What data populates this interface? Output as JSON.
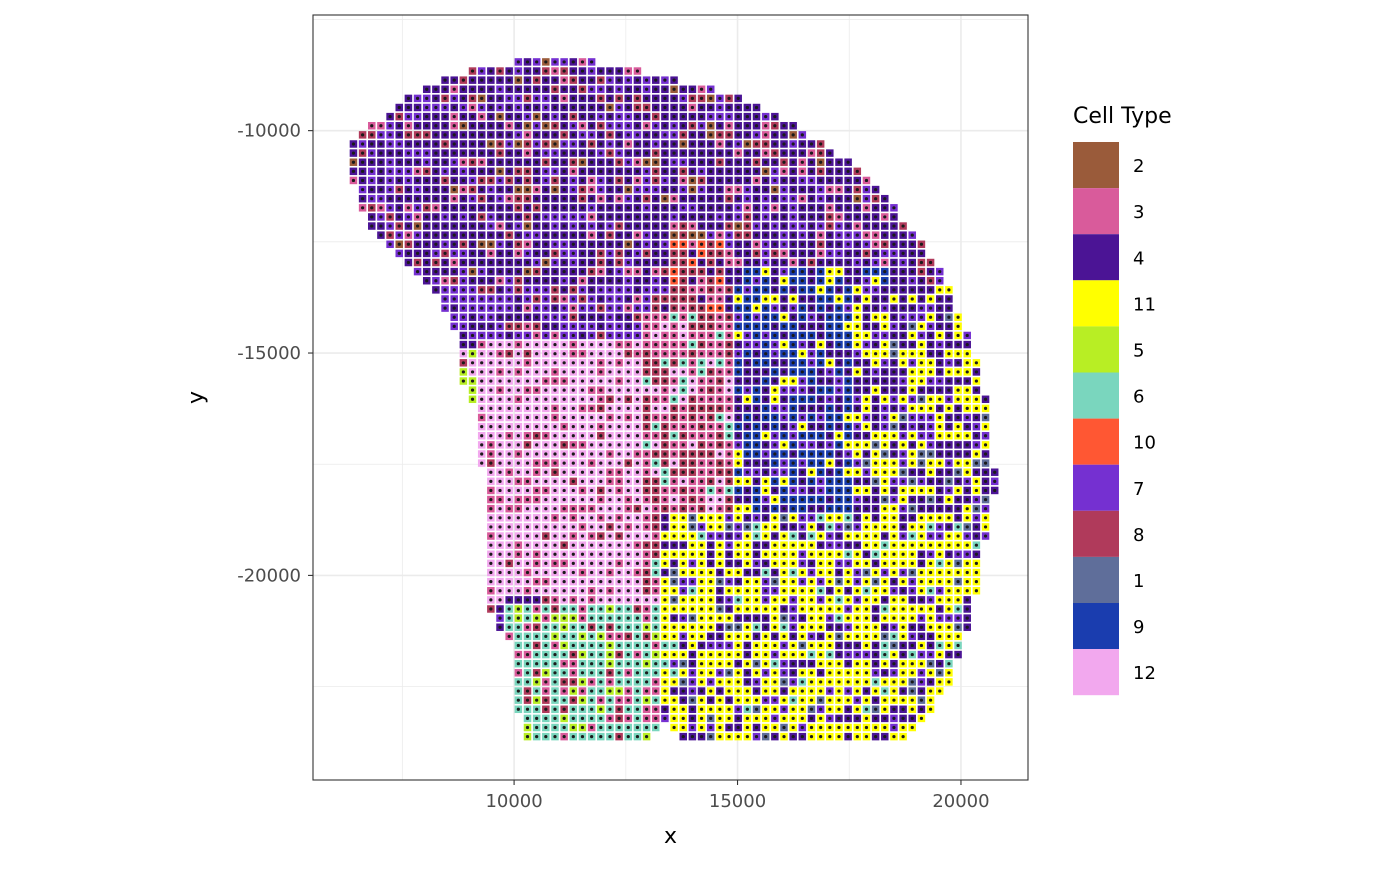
{
  "chart_data": {
    "type": "scatter",
    "title": "",
    "xlabel": "x",
    "ylabel": "y",
    "xlim": [
      5500,
      21500
    ],
    "ylim": [
      -24600,
      -7400
    ],
    "x_ticks": [
      10000,
      15000,
      20000
    ],
    "x_tick_labels": [
      "10000",
      "15000",
      "20000"
    ],
    "y_ticks": [
      -10000,
      -15000,
      -20000
    ],
    "y_tick_labels": [
      "-10000",
      "-15000",
      "-20000"
    ],
    "grid": true,
    "theme": "bw",
    "marker": "square tile with dot",
    "legend": {
      "title": "Cell Type",
      "position": "right",
      "entries": [
        {
          "label": "2",
          "color": "#9A5B3A"
        },
        {
          "label": "3",
          "color": "#D95B9B"
        },
        {
          "label": "4",
          "color": "#4B1495"
        },
        {
          "label": "11",
          "color": "#FFFF00"
        },
        {
          "label": "5",
          "color": "#B8EE24"
        },
        {
          "label": "6",
          "color": "#7AD6BE"
        },
        {
          "label": "10",
          "color": "#FF5733"
        },
        {
          "label": "7",
          "color": "#7530D1"
        },
        {
          "label": "8",
          "color": "#B03A5B"
        },
        {
          "label": "1",
          "color": "#5F6E9A"
        },
        {
          "label": "9",
          "color": "#1A3DAF"
        },
        {
          "label": "12",
          "color": "#F2A8EE"
        }
      ]
    },
    "spot_grid": {
      "x_start": 6200,
      "x_step": 205,
      "y_start": -8250,
      "y_step": 205,
      "tissue_outline": [
        [
          6300,
          -10400
        ],
        [
          7000,
          -9700
        ],
        [
          8000,
          -9000
        ],
        [
          9200,
          -8600
        ],
        [
          10300,
          -8400
        ],
        [
          11600,
          -8400
        ],
        [
          12700,
          -8600
        ],
        [
          13800,
          -8900
        ],
        [
          15000,
          -9200
        ],
        [
          16200,
          -9800
        ],
        [
          17400,
          -10600
        ],
        [
          18500,
          -11700
        ],
        [
          19500,
          -13000
        ],
        [
          20100,
          -14400
        ],
        [
          20600,
          -16000
        ],
        [
          20800,
          -18000
        ],
        [
          20500,
          -19500
        ],
        [
          20300,
          -20800
        ],
        [
          19700,
          -22500
        ],
        [
          19000,
          -23600
        ],
        [
          17500,
          -23800
        ],
        [
          15000,
          -23800
        ],
        [
          13700,
          -23800
        ],
        [
          13400,
          -23300
        ],
        [
          13000,
          -23800
        ],
        [
          10300,
          -23800
        ],
        [
          9900,
          -22600
        ],
        [
          9900,
          -21500
        ],
        [
          9300,
          -20600
        ],
        [
          9300,
          -18000
        ],
        [
          9200,
          -16500
        ],
        [
          8700,
          -15500
        ],
        [
          8800,
          -14800
        ],
        [
          8400,
          -13900
        ],
        [
          7600,
          -13000
        ],
        [
          6800,
          -12200
        ],
        [
          6300,
          -11000
        ]
      ],
      "regions": [
        {
          "label": "8",
          "polygon": [
            [
              16900,
              -9400
            ],
            [
              17050,
              -9400
            ],
            [
              17050,
              -9700
            ],
            [
              16900,
              -9700
            ]
          ],
          "mix": [
            [
              "8",
              1.0
            ]
          ]
        },
        {
          "label": "4",
          "polygon": [
            [
              6000,
              -8000
            ],
            [
              21500,
              -8000
            ],
            [
              21500,
              -13500
            ],
            [
              6000,
              -13500
            ]
          ],
          "mix": [
            [
              "4",
              0.55
            ],
            [
              "7",
              0.2
            ],
            [
              "8",
              0.12
            ],
            [
              "3",
              0.08
            ],
            [
              "2",
              0.05
            ]
          ]
        },
        {
          "label": "7",
          "polygon": [
            [
              6000,
              -13500
            ],
            [
              14800,
              -13500
            ],
            [
              14000,
              -14800
            ],
            [
              12000,
              -15200
            ],
            [
              10500,
              -15200
            ],
            [
              9300,
              -14700
            ],
            [
              6000,
              -14700
            ]
          ],
          "mix": [
            [
              "7",
              0.6
            ],
            [
              "4",
              0.2
            ],
            [
              "8",
              0.12
            ],
            [
              "3",
              0.08
            ]
          ]
        },
        {
          "label": "10",
          "polygon": [
            [
              13500,
              -12500
            ],
            [
              14800,
              -12500
            ],
            [
              14800,
              -15500
            ],
            [
              13500,
              -15500
            ]
          ],
          "mix": [
            [
              "8",
              0.45
            ],
            [
              "10",
              0.25
            ],
            [
              "3",
              0.2
            ],
            [
              "4",
              0.1
            ]
          ]
        },
        {
          "label": "5",
          "polygon": [
            [
              8600,
              -14900
            ],
            [
              10000,
              -14900
            ],
            [
              10000,
              -16200
            ],
            [
              8600,
              -16200
            ]
          ],
          "mix": [
            [
              "5",
              0.6
            ],
            [
              "12",
              0.25
            ],
            [
              "8",
              0.15
            ]
          ]
        },
        {
          "label": "12",
          "polygon": [
            [
              9200,
              -14700
            ],
            [
              13200,
              -14700
            ],
            [
              13500,
              -18000
            ],
            [
              12800,
              -21000
            ],
            [
              10500,
              -20500
            ],
            [
              9200,
              -20600
            ]
          ],
          "mix": [
            [
              "12",
              0.75
            ],
            [
              "3",
              0.2
            ],
            [
              "8",
              0.05
            ]
          ]
        },
        {
          "label": "3",
          "polygon": [
            [
              12800,
              -14000
            ],
            [
              15000,
              -14000
            ],
            [
              15200,
              -19000
            ],
            [
              14500,
              -21000
            ],
            [
              12800,
              -21000
            ]
          ],
          "mix": [
            [
              "3",
              0.45
            ],
            [
              "8",
              0.35
            ],
            [
              "12",
              0.1
            ],
            [
              "6",
              0.1
            ]
          ]
        },
        {
          "label": "9",
          "polygon": [
            [
              14800,
              -13000
            ],
            [
              18500,
              -13000
            ],
            [
              18000,
              -18500
            ],
            [
              17500,
              -20000
            ],
            [
              15000,
              -19500
            ],
            [
              15000,
              -16000
            ]
          ],
          "mix": [
            [
              "9",
              0.45
            ],
            [
              "4",
              0.3
            ],
            [
              "7",
              0.15
            ],
            [
              "11",
              0.1
            ]
          ]
        },
        {
          "label": "6",
          "polygon": [
            [
              9800,
              -20600
            ],
            [
              13300,
              -20600
            ],
            [
              13300,
              -23900
            ],
            [
              9800,
              -23900
            ]
          ],
          "mix": [
            [
              "6",
              0.55
            ],
            [
              "3",
              0.2
            ],
            [
              "5",
              0.15
            ],
            [
              "8",
              0.1
            ]
          ]
        },
        {
          "label": "11",
          "polygon": [
            [
              13300,
              -18500
            ],
            [
              21500,
              -18500
            ],
            [
              21500,
              -24000
            ],
            [
              13300,
              -24000
            ]
          ],
          "mix": [
            [
              "11",
              0.55
            ],
            [
              "4",
              0.2
            ],
            [
              "7",
              0.15
            ],
            [
              "1",
              0.05
            ],
            [
              "6",
              0.05
            ]
          ]
        },
        {
          "label": "11",
          "polygon": [
            [
              17500,
              -13500
            ],
            [
              21500,
              -13500
            ],
            [
              21500,
              -18500
            ],
            [
              17500,
              -18500
            ]
          ],
          "mix": [
            [
              "11",
              0.35
            ],
            [
              "4",
              0.4
            ],
            [
              "7",
              0.2
            ],
            [
              "1",
              0.05
            ]
          ]
        }
      ]
    }
  }
}
